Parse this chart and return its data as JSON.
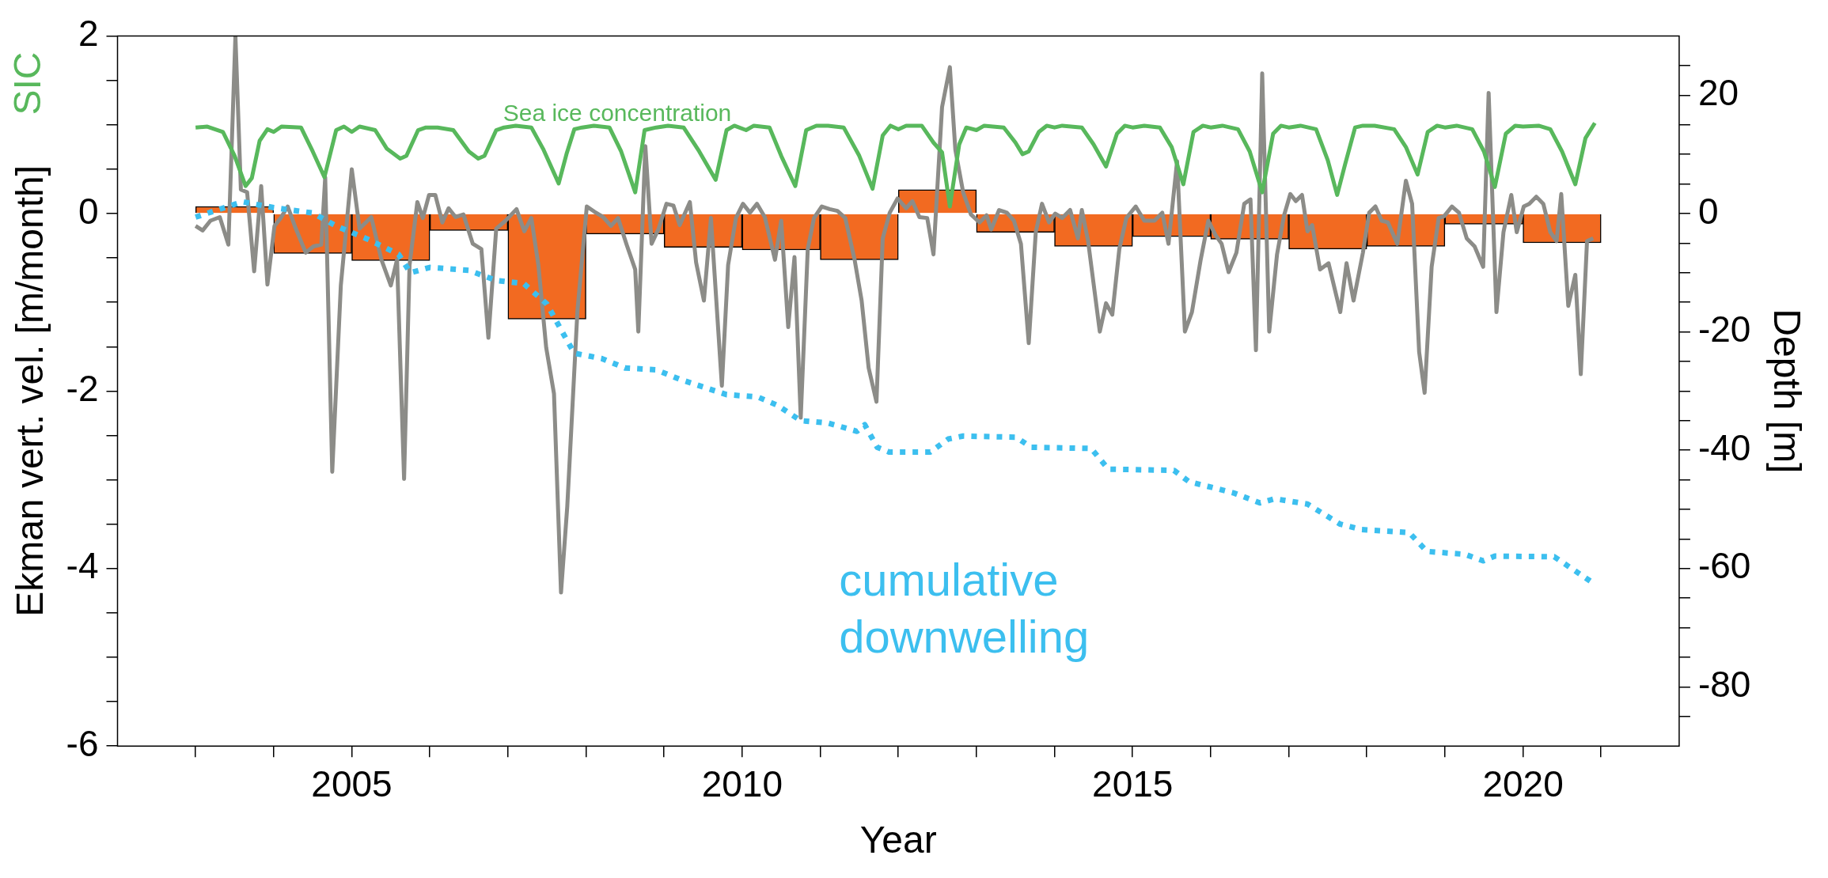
{
  "chart_data": {
    "type": "line",
    "xlabel": "Year",
    "ylabel": "Ekman vert. vel. [m/month]",
    "y2label": "Depth [m]",
    "annotations": [
      "SIC"
    ],
    "xlim": [
      2002,
      2022
    ],
    "xticks": [
      {
        "value": 2003,
        "label": null
      },
      {
        "value": 2004,
        "label": null
      },
      2005,
      {
        "value": 2006,
        "label": null
      },
      {
        "value": 2007,
        "label": null
      },
      {
        "value": 2008,
        "label": null
      },
      {
        "value": 2009,
        "label": null
      },
      2010,
      {
        "value": 2011,
        "label": null
      },
      {
        "value": 2012,
        "label": null
      },
      {
        "value": 2013,
        "label": null
      },
      {
        "value": 2014,
        "label": null
      },
      2015,
      {
        "value": 2016,
        "label": null
      },
      {
        "value": 2017,
        "label": null
      },
      {
        "value": 2018,
        "label": null
      },
      {
        "value": 2019,
        "label": null
      },
      2020,
      {
        "value": 2021,
        "label": null
      }
    ],
    "ylim": [
      -6,
      2
    ],
    "yticks": [
      -6,
      {
        "value": -5.5,
        "label": null
      },
      {
        "value": -5,
        "label": null
      },
      {
        "value": -4.5,
        "label": null
      },
      -4,
      {
        "value": -3.5,
        "label": null
      },
      {
        "value": -3,
        "label": null
      },
      {
        "value": -2.5,
        "label": null
      },
      -2,
      {
        "value": -1.5,
        "label": null
      },
      {
        "value": -1,
        "label": null
      },
      {
        "value": -0.5,
        "label": null
      },
      0,
      {
        "value": 0.5,
        "label": null
      },
      {
        "value": 1,
        "label": null
      },
      {
        "value": 1.5,
        "label": null
      },
      2
    ],
    "y2lim": [
      -90,
      30
    ],
    "y2ticks": [
      {
        "value": -85,
        "label": null
      },
      -80,
      {
        "value": -75,
        "label": null
      },
      {
        "value": -70,
        "label": null
      },
      {
        "value": -65,
        "label": null
      },
      -60,
      {
        "value": -55,
        "label": null
      },
      {
        "value": -50,
        "label": null
      },
      {
        "value": -45,
        "label": null
      },
      -40,
      {
        "value": -35,
        "label": null
      },
      {
        "value": -30,
        "label": null
      },
      {
        "value": -25,
        "label": null
      },
      -20,
      {
        "value": -15,
        "label": null
      },
      {
        "value": -10,
        "label": null
      },
      {
        "value": -5,
        "label": null
      },
      0,
      {
        "value": 5,
        "label": null
      },
      {
        "value": 10,
        "label": null
      },
      {
        "value": 15,
        "label": null
      },
      20,
      {
        "value": 25,
        "label": null
      }
    ],
    "series": [
      {
        "type": "bar",
        "color": "#f26a21",
        "x": [
          2003.5,
          2004.5,
          2005.5,
          2006.5,
          2007.5,
          2008.5,
          2009.5,
          2010.5,
          2011.5,
          2012.5,
          2013.5,
          2014.5,
          2015.5,
          2016.5,
          2017.5,
          2018.5,
          2019.5,
          2020.5
        ],
        "values": [
          0.08,
          -0.45,
          -0.53,
          -0.19,
          -1.19,
          -0.23,
          -0.38,
          -0.41,
          -0.52,
          0.27,
          -0.21,
          -0.37,
          -0.26,
          -0.29,
          -0.4,
          -0.37,
          -0.12,
          -0.33
        ]
      },
      {
        "color": "#8c8c88",
        "x": [
          2003.0,
          2003.09,
          2003.19,
          2003.31,
          2003.42,
          2003.51,
          2003.58,
          2003.66,
          2003.75,
          2003.84,
          2003.92,
          2004.01,
          2004.09,
          2004.18,
          2004.27,
          2004.41,
          2004.51,
          2004.61,
          2004.66,
          2004.75,
          2004.86,
          2005.0,
          2005.1,
          2005.25,
          2005.38,
          2005.5,
          2005.58,
          2005.67,
          2005.74,
          2005.84,
          2005.91,
          2005.99,
          2006.07,
          2006.16,
          2006.24,
          2006.33,
          2006.43,
          2006.55,
          2006.66,
          2006.75,
          2006.85,
          2006.97,
          2007.11,
          2007.21,
          2007.3,
          2007.39,
          2007.49,
          2007.59,
          2007.68,
          2007.76,
          2007.89,
          2008.01,
          2008.11,
          2008.22,
          2008.32,
          2008.41,
          2008.52,
          2008.63,
          2008.67,
          2008.76,
          2008.84,
          2008.93,
          2009.03,
          2009.12,
          2009.2,
          2009.33,
          2009.41,
          2009.51,
          2009.6,
          2009.74,
          2009.82,
          2009.92,
          2010.01,
          2010.1,
          2010.19,
          2010.29,
          2010.42,
          2010.5,
          2010.59,
          2010.67,
          2010.75,
          2010.84,
          2010.92,
          2011.02,
          2011.12,
          2011.22,
          2011.32,
          2011.44,
          2011.53,
          2011.62,
          2011.72,
          2011.8,
          2011.89,
          2011.99,
          2012.1,
          2012.18,
          2012.27,
          2012.37,
          2012.45,
          2012.56,
          2012.66,
          2012.73,
          2012.83,
          2012.93,
          2013.04,
          2013.13,
          2013.19,
          2013.29,
          2013.39,
          2013.48,
          2013.57,
          2013.67,
          2013.76,
          2013.84,
          2013.93,
          2014.01,
          2014.1,
          2014.2,
          2014.3,
          2014.35,
          2014.43,
          2014.58,
          2014.66,
          2014.74,
          2014.83,
          2014.92,
          2015.04,
          2015.15,
          2015.28,
          2015.38,
          2015.46,
          2015.57,
          2015.67,
          2015.76,
          2015.87,
          2015.97,
          2016.06,
          2016.14,
          2016.23,
          2016.33,
          2016.43,
          2016.51,
          2016.58,
          2016.66,
          2016.75,
          2016.85,
          2016.94,
          2017.02,
          2017.09,
          2017.17,
          2017.24,
          2017.3,
          2017.4,
          2017.51,
          2017.66,
          2017.74,
          2017.83,
          2017.95,
          2018.03,
          2018.11,
          2018.19,
          2018.27,
          2018.39,
          2018.5,
          2018.58,
          2018.67,
          2018.74,
          2018.83,
          2018.92,
          2018.99,
          2019.09,
          2019.18,
          2019.28,
          2019.38,
          2019.49,
          2019.56,
          2019.66,
          2019.75,
          2019.85,
          2019.92,
          2020.01,
          2020.08,
          2020.17,
          2020.26,
          2020.35,
          2020.43,
          2020.49,
          2020.58,
          2020.67,
          2020.74,
          2020.82,
          2020.9
        ],
        "values": [
          -0.14,
          -0.19,
          -0.08,
          -0.04,
          -0.35,
          2,
          0.27,
          0.24,
          -0.65,
          0.31,
          -0.8,
          -0.14,
          -0.05,
          0.08,
          -0.14,
          -0.44,
          -0.37,
          -0.35,
          0.41,
          -2.91,
          -0.81,
          0.5,
          -0.17,
          -0.04,
          -0.52,
          -0.81,
          -0.52,
          -2.99,
          -0.58,
          0.13,
          -0.05,
          0.21,
          0.21,
          -0.1,
          0.06,
          -0.04,
          -0.01,
          -0.34,
          -0.4,
          -1.4,
          -0.17,
          -0.08,
          0.05,
          -0.2,
          -0.05,
          -0.58,
          -1.51,
          -2.03,
          -4.27,
          -3.3,
          -1.1,
          0.08,
          0.02,
          -0.04,
          -0.14,
          -0.05,
          -0.35,
          -0.63,
          -1.33,
          0.76,
          -0.34,
          -0.17,
          0.11,
          0.09,
          -0.13,
          0.13,
          -0.55,
          -0.98,
          -0.05,
          -1.94,
          -0.58,
          -0.05,
          0.11,
          0.01,
          0.11,
          -0.04,
          -0.52,
          -0.08,
          -1.28,
          -0.49,
          -2.3,
          -0.4,
          -0.05,
          0.08,
          0.05,
          0.03,
          -0.05,
          -0.52,
          -0.98,
          -1.74,
          -2.12,
          -0.28,
          0.01,
          0.17,
          0.06,
          0.14,
          -0.04,
          -0.05,
          -0.46,
          1.2,
          1.65,
          0.72,
          0.24,
          -0.01,
          -0.1,
          -0.02,
          -0.18,
          0.04,
          0.01,
          -0.08,
          -0.34,
          -1.46,
          -0.21,
          0.11,
          -0.1,
          0,
          -0.05,
          0.04,
          -0.28,
          0.04,
          -0.31,
          -1.33,
          -1.01,
          -1.14,
          -0.4,
          -0.05,
          0.08,
          -0.08,
          -0.08,
          0.01,
          -0.34,
          0.59,
          -1.33,
          -1.11,
          -0.53,
          -0.08,
          -0.24,
          -0.34,
          -0.66,
          -0.44,
          0.11,
          0.16,
          -1.54,
          1.58,
          -1.33,
          -0.46,
          -0.02,
          0.22,
          0.14,
          0.21,
          -0.2,
          -0.13,
          -0.63,
          -0.56,
          -1.11,
          -0.56,
          -0.98,
          -0.44,
          0.01,
          0.08,
          -0.08,
          -0.1,
          -0.34,
          0.37,
          0.11,
          -1.56,
          -2.02,
          -0.6,
          -0.05,
          -0.03,
          0.08,
          0.01,
          -0.28,
          -0.37,
          -0.6,
          1.36,
          -1.11,
          -0.21,
          0.21,
          -0.21,
          0.08,
          0.11,
          0.19,
          0.11,
          -0.21,
          -0.31,
          0.22,
          -1.04,
          -0.69,
          -1.81,
          -0.31,
          -0.28
        ]
      },
      {
        "name": "Sea ice concentration",
        "color": "#58b85c",
        "x": [
          2003.0,
          2003.15,
          2003.35,
          2003.5,
          2003.64,
          2003.72,
          2003.82,
          2003.92,
          2004.0,
          2004.1,
          2004.35,
          2004.5,
          2004.65,
          2004.8,
          2004.9,
          2005.0,
          2005.1,
          2005.3,
          2005.45,
          2005.62,
          2005.7,
          2005.85,
          2005.95,
          2006.1,
          2006.3,
          2006.5,
          2006.62,
          2006.7,
          2006.85,
          2006.95,
          2007.1,
          2007.3,
          2007.45,
          2007.65,
          2007.75,
          2007.85,
          2007.95,
          2008.1,
          2008.3,
          2008.45,
          2008.63,
          2008.75,
          2008.9,
          2009.05,
          2009.25,
          2009.45,
          2009.66,
          2009.8,
          2009.9,
          2010.05,
          2010.15,
          2010.35,
          2010.5,
          2010.68,
          2010.82,
          2010.95,
          2011.1,
          2011.3,
          2011.5,
          2011.67,
          2011.8,
          2011.9,
          2012.0,
          2012.1,
          2012.3,
          2012.45,
          2012.56,
          2012.66,
          2012.78,
          2012.87,
          2013.0,
          2013.1,
          2013.35,
          2013.5,
          2013.59,
          2013.67,
          2013.8,
          2013.9,
          2014.0,
          2014.1,
          2014.35,
          2014.5,
          2014.66,
          2014.8,
          2014.9,
          2015.0,
          2015.15,
          2015.35,
          2015.5,
          2015.65,
          2015.78,
          2015.9,
          2016.0,
          2016.15,
          2016.35,
          2016.5,
          2016.66,
          2016.8,
          2016.9,
          2017.0,
          2017.15,
          2017.35,
          2017.5,
          2017.62,
          2017.72,
          2017.85,
          2017.95,
          2018.1,
          2018.35,
          2018.5,
          2018.65,
          2018.78,
          2018.9,
          2019.0,
          2019.15,
          2019.35,
          2019.5,
          2019.64,
          2019.78,
          2019.9,
          2020.0,
          2020.2,
          2020.35,
          2020.5,
          2020.67,
          2020.8,
          2020.92
        ],
        "values": [
          0.97,
          0.98,
          0.92,
          0.65,
          0.31,
          0.4,
          0.82,
          0.95,
          0.92,
          0.98,
          0.97,
          0.7,
          0.41,
          0.94,
          0.98,
          0.92,
          0.98,
          0.94,
          0.73,
          0.62,
          0.65,
          0.94,
          0.97,
          0.97,
          0.94,
          0.7,
          0.62,
          0.65,
          0.94,
          0.97,
          0.99,
          0.97,
          0.73,
          0.34,
          0.67,
          0.95,
          0.97,
          0.99,
          0.97,
          0.7,
          0.24,
          0.94,
          0.97,
          0.99,
          0.97,
          0.7,
          0.38,
          0.94,
          0.99,
          0.94,
          0.99,
          0.97,
          0.65,
          0.31,
          0.94,
          0.99,
          0.99,
          0.97,
          0.65,
          0.28,
          0.88,
          0.99,
          0.95,
          0.99,
          0.99,
          0.8,
          0.69,
          0.08,
          0.78,
          0.97,
          0.94,
          0.99,
          0.97,
          0.8,
          0.67,
          0.7,
          0.92,
          0.99,
          0.97,
          0.99,
          0.97,
          0.78,
          0.53,
          0.9,
          0.99,
          0.97,
          0.99,
          0.97,
          0.75,
          0.33,
          0.92,
          0.99,
          0.97,
          0.99,
          0.95,
          0.7,
          0.24,
          0.9,
          0.99,
          0.97,
          0.99,
          0.95,
          0.6,
          0.21,
          0.55,
          0.97,
          0.99,
          0.99,
          0.95,
          0.75,
          0.44,
          0.92,
          0.99,
          0.97,
          0.99,
          0.95,
          0.7,
          0.3,
          0.9,
          0.99,
          0.98,
          0.99,
          0.95,
          0.7,
          0.33,
          0.85,
          1.02
        ]
      },
      {
        "name": "cumulative downwelling",
        "color": "#3cbfef",
        "axis": "y2",
        "line_style": "dotted",
        "x": [
          2003.0,
          2003.6,
          2004.0,
          2004.5,
          2004.8,
          2005.2,
          2005.6,
          2005.75,
          2006.0,
          2006.5,
          2006.85,
          2007.2,
          2007.5,
          2007.7,
          2007.85,
          2008.2,
          2008.5,
          2008.9,
          2009.2,
          2009.5,
          2009.8,
          2010.2,
          2010.45,
          2010.75,
          2011.1,
          2011.47,
          2011.57,
          2011.73,
          2011.88,
          2012.41,
          2012.64,
          2012.83,
          2013.51,
          2013.7,
          2014.47,
          2014.69,
          2015.53,
          2015.72,
          2016.29,
          2016.63,
          2016.82,
          2017.24,
          2017.66,
          2017.93,
          2018.54,
          2018.77,
          2019.26,
          2019.49,
          2019.64,
          2020.4,
          2020.59,
          2020.86
        ],
        "values": [
          -0.6,
          2,
          1,
          0.1,
          -2.1,
          -4.3,
          -6.9,
          -10,
          -9.1,
          -9.6,
          -11.3,
          -11.8,
          -15.3,
          -20.1,
          -23.6,
          -24.5,
          -26.1,
          -26.4,
          -28,
          -29.3,
          -30.6,
          -31,
          -32.4,
          -35,
          -35.4,
          -36.8,
          -35.7,
          -39.5,
          -40.3,
          -40.3,
          -38.1,
          -37.6,
          -37.8,
          -39.5,
          -39.7,
          -43.2,
          -43.4,
          -45.3,
          -47.2,
          -48.9,
          -48.2,
          -49.1,
          -52.5,
          -53.4,
          -53.9,
          -57.1,
          -57.6,
          -58.7,
          -57.9,
          -58,
          -59.7,
          -62.1
        ]
      }
    ]
  }
}
